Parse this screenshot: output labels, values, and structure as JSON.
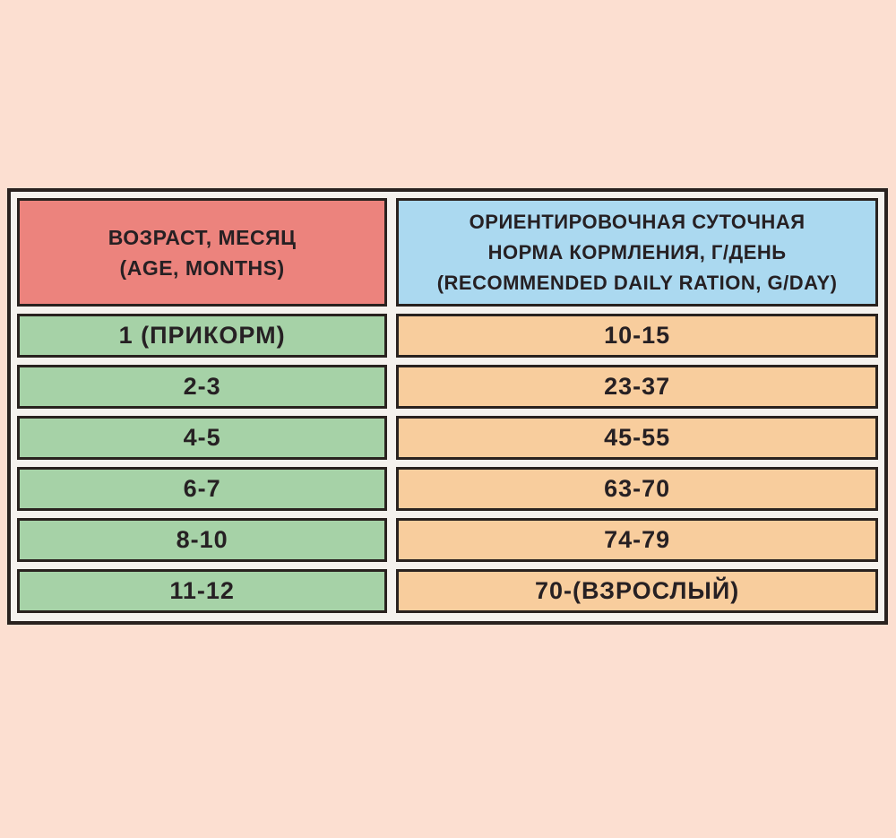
{
  "page": {
    "background_color": "#fcdfd1",
    "border_color": "#29221f",
    "gap_color": "#f5f2ee"
  },
  "table": {
    "header": {
      "age_col": "ВОЗРАСТ, МЕСЯЦ\n(AGE, MONTHS)",
      "ration_col": "ОРИЕНТИРОВОЧНАЯ СУТОЧНАЯ\nНОРМА КОРМЛЕНИЯ, Г/ДЕНЬ\n(RECOMMENDED DAILY RATION, G/DAY)",
      "age_bg": "#ec837d",
      "ration_bg": "#abd9f0"
    },
    "rows": [
      {
        "age": "1 (ПРИКОРМ)",
        "ration": "10-15"
      },
      {
        "age": "2-3",
        "ration": "23-37"
      },
      {
        "age": "4-5",
        "ration": "45-55"
      },
      {
        "age": "6-7",
        "ration": "63-70"
      },
      {
        "age": "8-10",
        "ration": "74-79"
      },
      {
        "age": "11-12",
        "ration": "70-(ВЗРОСЛЫЙ)"
      }
    ],
    "row_colors": {
      "age_cell": "#a6d2a7",
      "ration_cell": "#f8cd9d"
    }
  },
  "chart_data": {
    "type": "table",
    "title": "",
    "columns": [
      "ВОЗРАСТ, МЕСЯЦ (AGE, MONTHS)",
      "ОРИЕНТИРОВОЧНАЯ СУТОЧНАЯ НОРМА КОРМЛЕНИЯ, Г/ДЕНЬ (RECOMMENDED DAILY RATION, G/DAY)"
    ],
    "rows": [
      [
        "1 (ПРИКОРМ)",
        "10-15"
      ],
      [
        "2-3",
        "23-37"
      ],
      [
        "4-5",
        "45-55"
      ],
      [
        "6-7",
        "63-70"
      ],
      [
        "8-10",
        "74-79"
      ],
      [
        "11-12",
        "70-(ВЗРОСЛЫЙ)"
      ]
    ]
  }
}
